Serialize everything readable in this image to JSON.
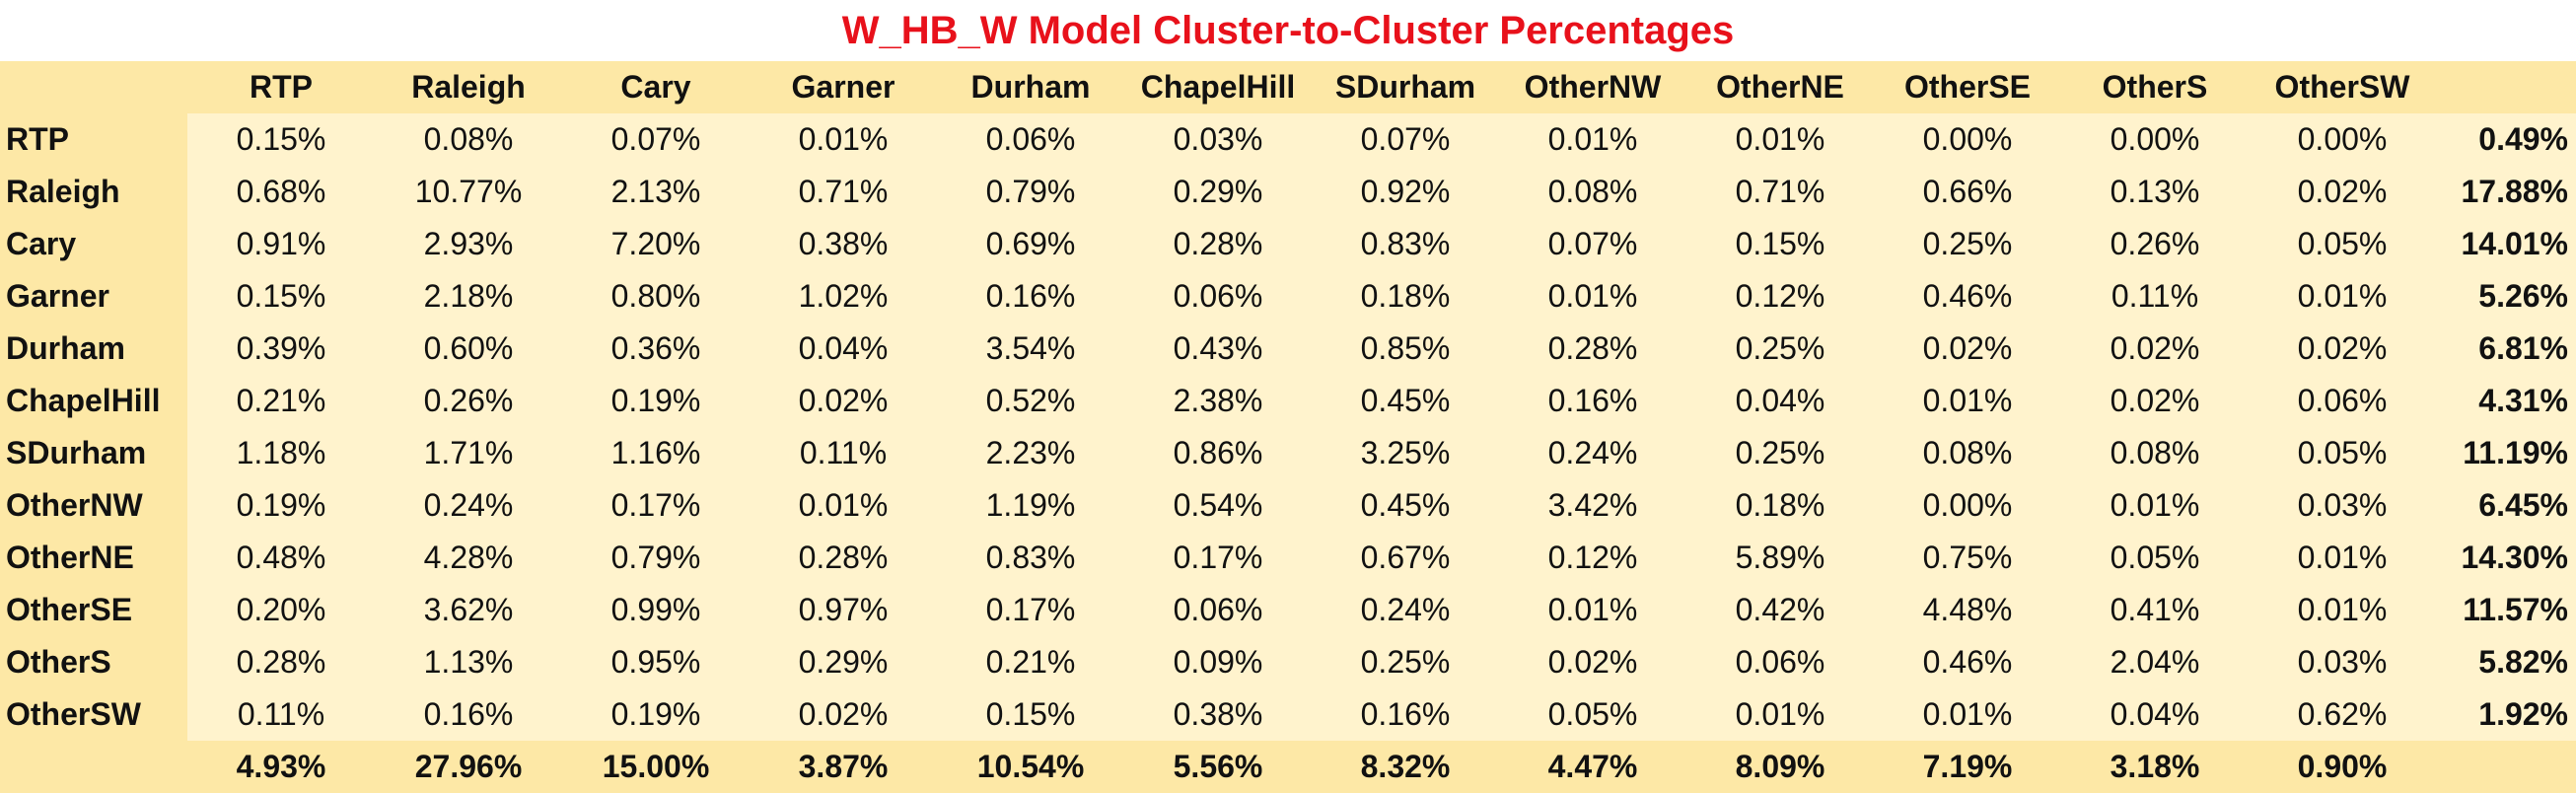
{
  "title": "W_HB_W Model Cluster-to-Cluster Percentages",
  "columns": [
    "RTP",
    "Raleigh",
    "Cary",
    "Garner",
    "Durham",
    "ChapelHill",
    "SDurham",
    "OtherNW",
    "OtherNE",
    "OtherSE",
    "OtherS",
    "OtherSW"
  ],
  "rows": [
    {
      "label": "RTP",
      "values": [
        "0.15%",
        "0.08%",
        "0.07%",
        "0.01%",
        "0.06%",
        "0.03%",
        "0.07%",
        "0.01%",
        "0.01%",
        "0.00%",
        "0.00%",
        "0.00%"
      ],
      "total": "0.49%"
    },
    {
      "label": "Raleigh",
      "values": [
        "0.68%",
        "10.77%",
        "2.13%",
        "0.71%",
        "0.79%",
        "0.29%",
        "0.92%",
        "0.08%",
        "0.71%",
        "0.66%",
        "0.13%",
        "0.02%"
      ],
      "total": "17.88%"
    },
    {
      "label": "Cary",
      "values": [
        "0.91%",
        "2.93%",
        "7.20%",
        "0.38%",
        "0.69%",
        "0.28%",
        "0.83%",
        "0.07%",
        "0.15%",
        "0.25%",
        "0.26%",
        "0.05%"
      ],
      "total": "14.01%"
    },
    {
      "label": "Garner",
      "values": [
        "0.15%",
        "2.18%",
        "0.80%",
        "1.02%",
        "0.16%",
        "0.06%",
        "0.18%",
        "0.01%",
        "0.12%",
        "0.46%",
        "0.11%",
        "0.01%"
      ],
      "total": "5.26%"
    },
    {
      "label": "Durham",
      "values": [
        "0.39%",
        "0.60%",
        "0.36%",
        "0.04%",
        "3.54%",
        "0.43%",
        "0.85%",
        "0.28%",
        "0.25%",
        "0.02%",
        "0.02%",
        "0.02%"
      ],
      "total": "6.81%"
    },
    {
      "label": "ChapelHill",
      "values": [
        "0.21%",
        "0.26%",
        "0.19%",
        "0.02%",
        "0.52%",
        "2.38%",
        "0.45%",
        "0.16%",
        "0.04%",
        "0.01%",
        "0.02%",
        "0.06%"
      ],
      "total": "4.31%"
    },
    {
      "label": "SDurham",
      "values": [
        "1.18%",
        "1.71%",
        "1.16%",
        "0.11%",
        "2.23%",
        "0.86%",
        "3.25%",
        "0.24%",
        "0.25%",
        "0.08%",
        "0.08%",
        "0.05%"
      ],
      "total": "11.19%"
    },
    {
      "label": "OtherNW",
      "values": [
        "0.19%",
        "0.24%",
        "0.17%",
        "0.01%",
        "1.19%",
        "0.54%",
        "0.45%",
        "3.42%",
        "0.18%",
        "0.00%",
        "0.01%",
        "0.03%"
      ],
      "total": "6.45%"
    },
    {
      "label": "OtherNE",
      "values": [
        "0.48%",
        "4.28%",
        "0.79%",
        "0.28%",
        "0.83%",
        "0.17%",
        "0.67%",
        "0.12%",
        "5.89%",
        "0.75%",
        "0.05%",
        "0.01%"
      ],
      "total": "14.30%"
    },
    {
      "label": "OtherSE",
      "values": [
        "0.20%",
        "3.62%",
        "0.99%",
        "0.97%",
        "0.17%",
        "0.06%",
        "0.24%",
        "0.01%",
        "0.42%",
        "4.48%",
        "0.41%",
        "0.01%"
      ],
      "total": "11.57%"
    },
    {
      "label": "OtherS",
      "values": [
        "0.28%",
        "1.13%",
        "0.95%",
        "0.29%",
        "0.21%",
        "0.09%",
        "0.25%",
        "0.02%",
        "0.06%",
        "0.46%",
        "2.04%",
        "0.03%"
      ],
      "total": "5.82%"
    },
    {
      "label": "OtherSW",
      "values": [
        "0.11%",
        "0.16%",
        "0.19%",
        "0.02%",
        "0.15%",
        "0.38%",
        "0.16%",
        "0.05%",
        "0.01%",
        "0.01%",
        "0.04%",
        "0.62%"
      ],
      "total": "1.92%"
    }
  ],
  "column_totals": [
    "4.93%",
    "27.96%",
    "15.00%",
    "3.87%",
    "10.54%",
    "5.56%",
    "8.32%",
    "4.47%",
    "8.09%",
    "7.19%",
    "3.18%",
    "0.90%"
  ],
  "colors": {
    "title": "#e8111b",
    "header_fill": "#fde8a6",
    "cell_fill": "#fff3cd"
  }
}
